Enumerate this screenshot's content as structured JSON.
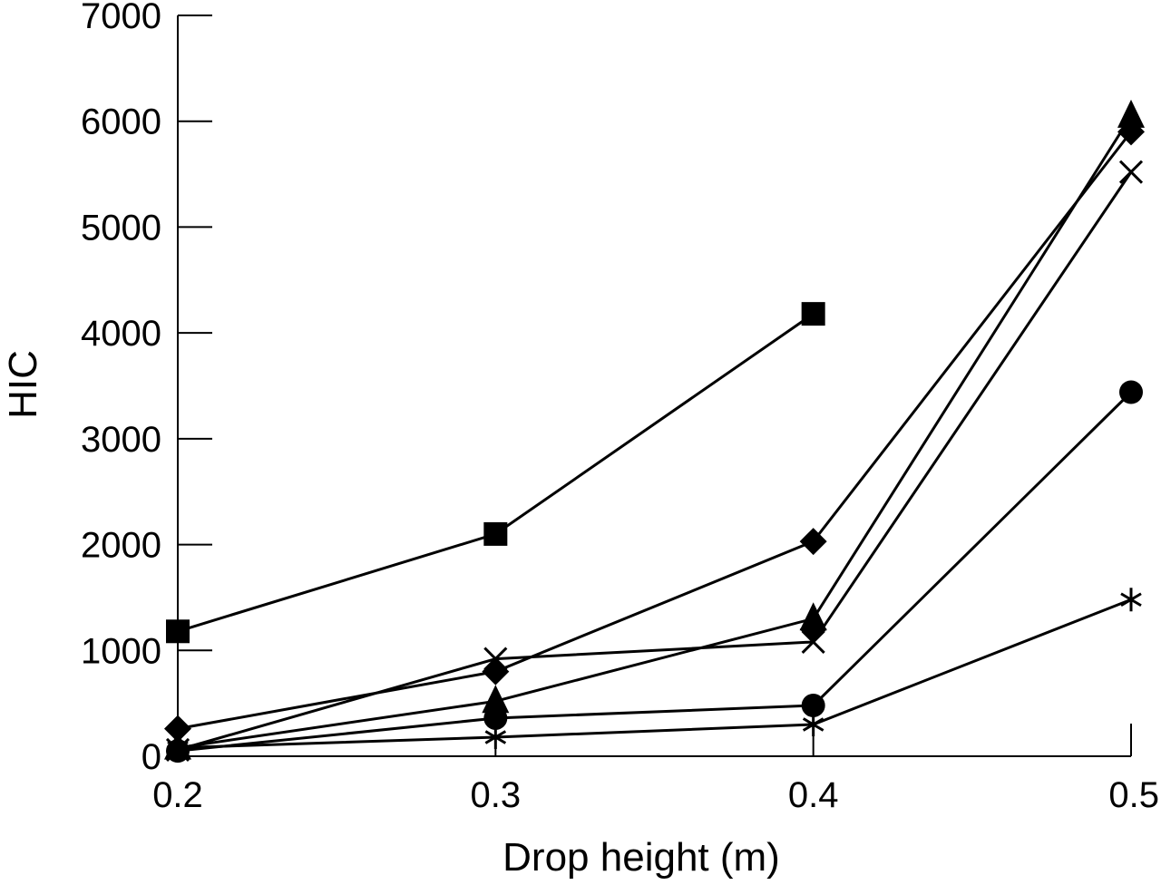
{
  "chart_data": {
    "type": "line",
    "title": "",
    "xlabel": "Drop height (m)",
    "ylabel": "HIC",
    "xlim": [
      0.2,
      0.5
    ],
    "ylim": [
      0,
      7000
    ],
    "x_ticks": [
      "0.2",
      "0.3",
      "0.4",
      "0.5"
    ],
    "y_ticks": [
      "0",
      "1000",
      "2000",
      "3000",
      "4000",
      "5000",
      "6000",
      "7000"
    ],
    "grid": false,
    "legend": "none",
    "series": [
      {
        "marker": "square",
        "x": [
          0.2,
          0.3,
          0.4
        ],
        "y": [
          1180,
          2100,
          4180
        ]
      },
      {
        "marker": "diamond",
        "x": [
          0.2,
          0.3,
          0.4,
          0.5
        ],
        "y": [
          260,
          800,
          2030,
          5900
        ]
      },
      {
        "marker": "triangle",
        "x": [
          0.2,
          0.3,
          0.4,
          0.5
        ],
        "y": [
          80,
          520,
          1300,
          6050
        ]
      },
      {
        "marker": "diamond",
        "x": [
          0.4
        ],
        "y": [
          1200
        ]
      },
      {
        "marker": "cross",
        "x": [
          0.2,
          0.3,
          0.4,
          0.5
        ],
        "y": [
          60,
          920,
          1080,
          5520
        ]
      },
      {
        "marker": "circle",
        "x": [
          0.2,
          0.3,
          0.4,
          0.5
        ],
        "y": [
          50,
          360,
          480,
          3440
        ]
      },
      {
        "marker": "asterisk",
        "x": [
          0.2,
          0.3,
          0.4,
          0.5
        ],
        "y": [
          80,
          180,
          300,
          1480
        ]
      }
    ]
  }
}
